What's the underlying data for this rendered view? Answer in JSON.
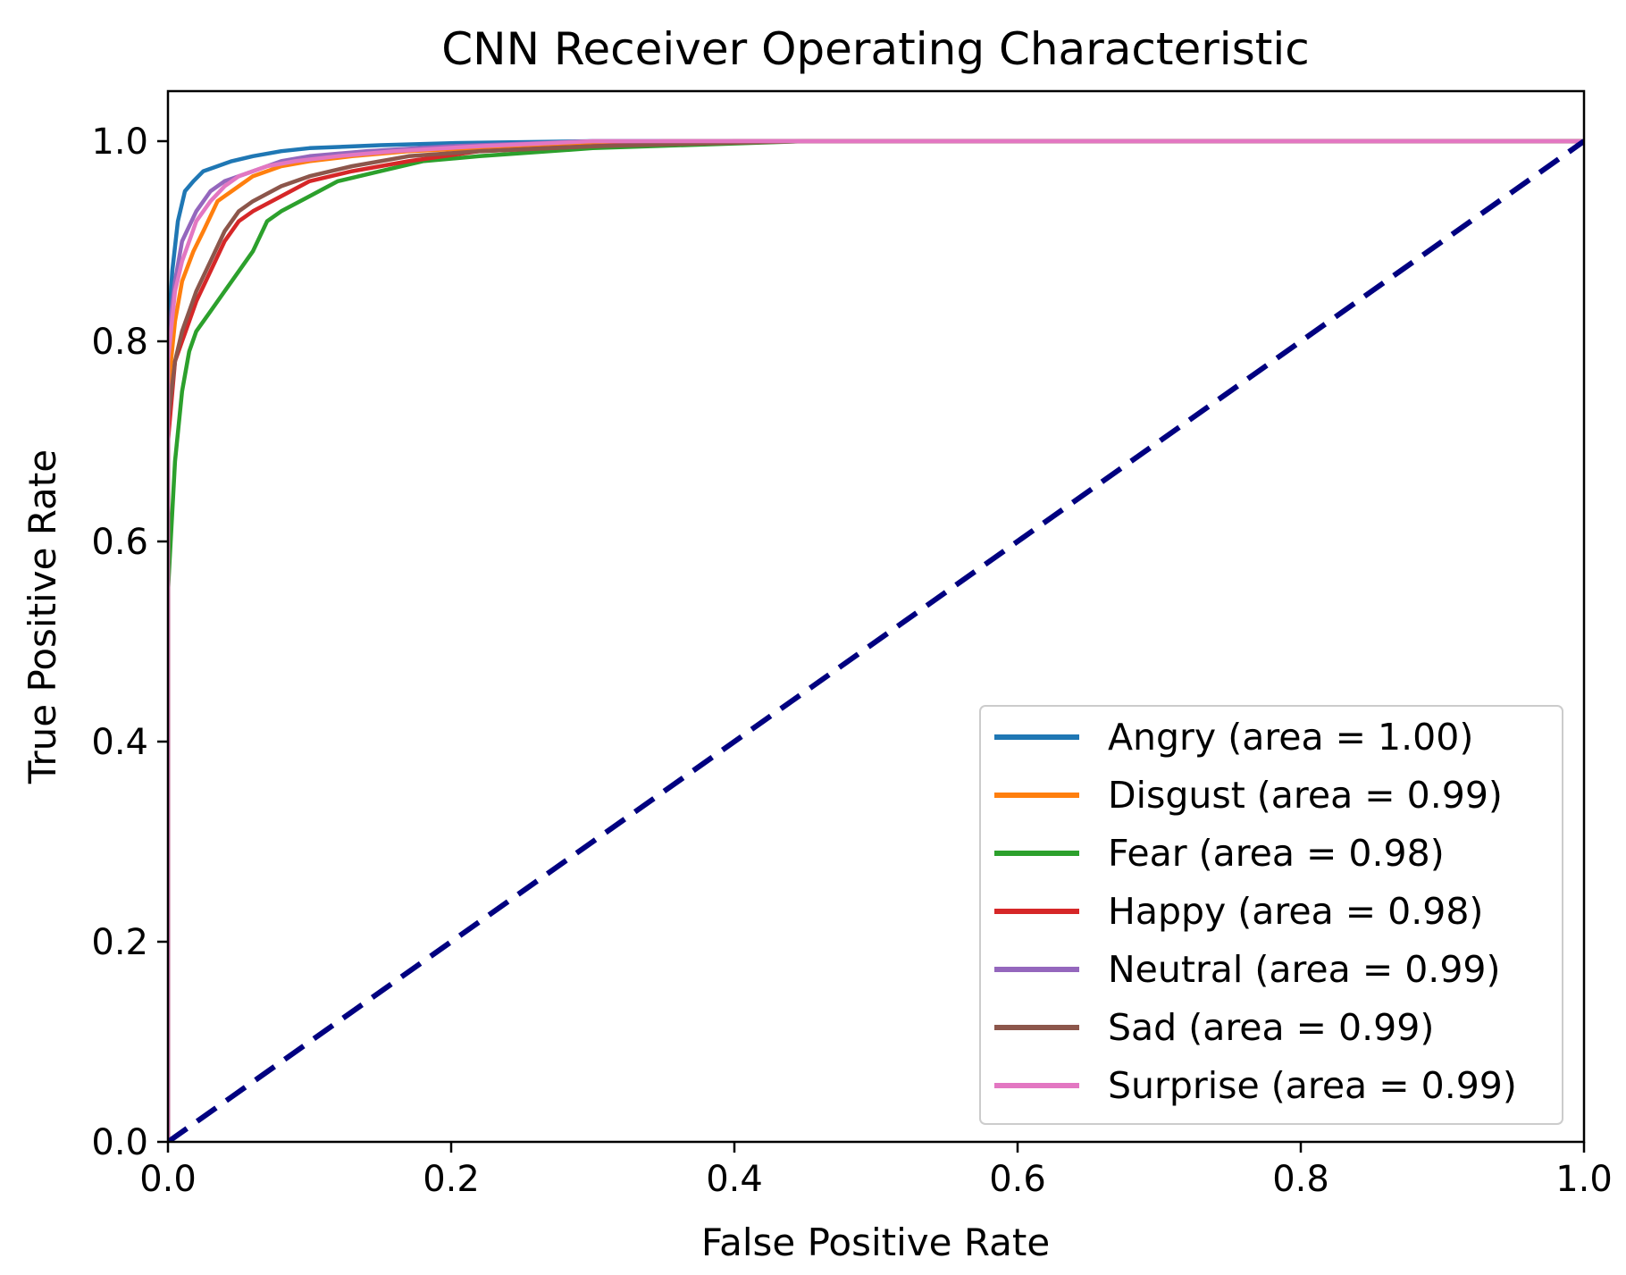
{
  "chart_data": {
    "type": "line",
    "title": "CNN Receiver Operating Characteristic",
    "xlabel": "False Positive Rate",
    "ylabel": "True Positive Rate",
    "xlim": [
      0.0,
      1.0
    ],
    "ylim": [
      0.0,
      1.05
    ],
    "xticks": [
      0.0,
      0.2,
      0.4,
      0.6,
      0.8,
      1.0
    ],
    "yticks": [
      0.0,
      0.2,
      0.4,
      0.6,
      0.8,
      1.0
    ],
    "xtick_labels": [
      "0.0",
      "0.2",
      "0.4",
      "0.6",
      "0.8",
      "1.0"
    ],
    "ytick_labels": [
      "0.0",
      "0.2",
      "0.4",
      "0.6",
      "0.8",
      "1.0"
    ],
    "grid": false,
    "legend_position": "lower-right",
    "series": [
      {
        "name": "Angry",
        "legend_label": "Angry (area = 1.00)",
        "color": "#1f77b4",
        "x": [
          0.0,
          0.0,
          0.003,
          0.007,
          0.012,
          0.018,
          0.025,
          0.035,
          0.045,
          0.06,
          0.08,
          0.1,
          0.15,
          0.2,
          0.3,
          1.0
        ],
        "y": [
          0.0,
          0.8,
          0.87,
          0.92,
          0.95,
          0.96,
          0.97,
          0.975,
          0.98,
          0.985,
          0.99,
          0.993,
          0.996,
          0.998,
          1.0,
          1.0
        ]
      },
      {
        "name": "Disgust",
        "legend_label": "Disgust (area = 0.99)",
        "color": "#ff7f0e",
        "x": [
          0.0,
          0.0,
          0.005,
          0.01,
          0.018,
          0.025,
          0.035,
          0.045,
          0.06,
          0.08,
          0.1,
          0.13,
          0.17,
          0.25,
          0.35,
          1.0
        ],
        "y": [
          0.0,
          0.75,
          0.82,
          0.86,
          0.89,
          0.91,
          0.94,
          0.95,
          0.965,
          0.975,
          0.98,
          0.985,
          0.99,
          0.995,
          1.0,
          1.0
        ]
      },
      {
        "name": "Fear",
        "legend_label": "Fear (area = 0.98)",
        "color": "#2ca02c",
        "x": [
          0.0,
          0.0,
          0.005,
          0.01,
          0.015,
          0.02,
          0.03,
          0.04,
          0.05,
          0.06,
          0.07,
          0.08,
          0.1,
          0.12,
          0.15,
          0.18,
          0.22,
          0.3,
          0.45,
          1.0
        ],
        "y": [
          0.0,
          0.55,
          0.68,
          0.75,
          0.79,
          0.81,
          0.83,
          0.85,
          0.87,
          0.89,
          0.92,
          0.93,
          0.945,
          0.96,
          0.97,
          0.98,
          0.985,
          0.993,
          1.0,
          1.0
        ]
      },
      {
        "name": "Happy",
        "legend_label": "Happy (area = 0.98)",
        "color": "#d62728",
        "x": [
          0.0,
          0.0,
          0.005,
          0.01,
          0.015,
          0.02,
          0.03,
          0.04,
          0.05,
          0.06,
          0.08,
          0.1,
          0.13,
          0.17,
          0.22,
          0.3,
          0.4,
          1.0
        ],
        "y": [
          0.0,
          0.7,
          0.78,
          0.8,
          0.82,
          0.84,
          0.87,
          0.9,
          0.92,
          0.93,
          0.945,
          0.96,
          0.97,
          0.98,
          0.99,
          0.995,
          1.0,
          1.0
        ]
      },
      {
        "name": "Neutral",
        "legend_label": "Neutral (area = 0.99)",
        "color": "#9467bd",
        "x": [
          0.0,
          0.0,
          0.005,
          0.01,
          0.02,
          0.03,
          0.04,
          0.06,
          0.08,
          0.1,
          0.14,
          0.2,
          0.3,
          1.0
        ],
        "y": [
          0.0,
          0.8,
          0.86,
          0.9,
          0.93,
          0.95,
          0.96,
          0.97,
          0.98,
          0.985,
          0.99,
          0.995,
          1.0,
          1.0
        ]
      },
      {
        "name": "Sad",
        "legend_label": "Sad (area = 0.99)",
        "color": "#8c564b",
        "x": [
          0.0,
          0.0,
          0.005,
          0.01,
          0.015,
          0.02,
          0.03,
          0.04,
          0.05,
          0.06,
          0.08,
          0.1,
          0.13,
          0.17,
          0.22,
          0.3,
          0.45,
          1.0
        ],
        "y": [
          0.0,
          0.72,
          0.78,
          0.81,
          0.83,
          0.85,
          0.88,
          0.91,
          0.93,
          0.94,
          0.955,
          0.965,
          0.975,
          0.985,
          0.99,
          0.995,
          1.0,
          1.0
        ]
      },
      {
        "name": "Surprise",
        "legend_label": "Surprise (area = 0.99)",
        "color": "#e377c2",
        "x": [
          0.0,
          0.0,
          0.005,
          0.01,
          0.015,
          0.02,
          0.03,
          0.04,
          0.05,
          0.07,
          0.09,
          0.12,
          0.16,
          0.22,
          0.3,
          1.0
        ],
        "y": [
          0.0,
          0.78,
          0.85,
          0.88,
          0.9,
          0.92,
          0.94,
          0.955,
          0.965,
          0.975,
          0.98,
          0.985,
          0.99,
          0.995,
          1.0,
          1.0
        ]
      },
      {
        "name": "Chance",
        "legend_label": "",
        "color": "#000080",
        "dashed": true,
        "x": [
          0.0,
          1.0
        ],
        "y": [
          0.0,
          1.0
        ]
      }
    ]
  }
}
